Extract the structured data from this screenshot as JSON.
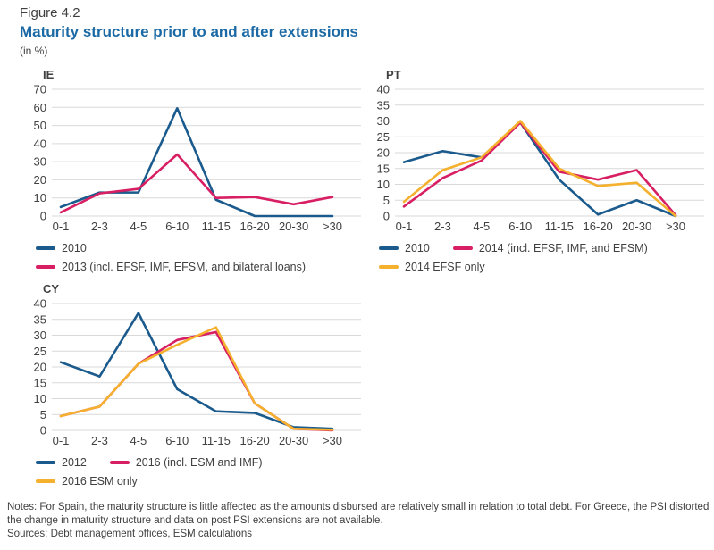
{
  "header": {
    "figure_label": "Figure 4.2",
    "title": "Maturity structure prior to and after extensions",
    "unit": "(in %)"
  },
  "colors": {
    "accent_title": "#1b6aa5",
    "line_blue": "#1a5a8c",
    "line_pink": "#d81f63",
    "line_yellow": "#f5b02e",
    "grid": "#d9d9d9",
    "tick_text": "#404040"
  },
  "chart_data": [
    {
      "type": "line",
      "title": "IE",
      "categories": [
        "0-1",
        "2-3",
        "4-5",
        "6-10",
        "11-15",
        "16-20",
        "20-30",
        ">30"
      ],
      "xlabel": "",
      "ylabel": "",
      "ylim": [
        0,
        70
      ],
      "ytick_step": 10,
      "grid": "horizontal",
      "legend_position": "bottom",
      "series": [
        {
          "name": "2010",
          "color": "#1a5a8c",
          "values": [
            5,
            13,
            13,
            59.5,
            9,
            0,
            0,
            0
          ]
        },
        {
          "name": "2013 (incl. EFSF, IMF, EFSM, and bilateral loans)",
          "color": "#d81f63",
          "values": [
            2,
            12.5,
            15,
            34,
            10,
            10.5,
            6.5,
            10.5
          ]
        }
      ]
    },
    {
      "type": "line",
      "title": "PT",
      "categories": [
        "0-1",
        "2-3",
        "4-5",
        "6-10",
        "11-15",
        "16-20",
        "20-30",
        ">30"
      ],
      "xlabel": "",
      "ylabel": "",
      "ylim": [
        0,
        40
      ],
      "ytick_step": 5,
      "grid": "horizontal",
      "legend_position": "bottom",
      "series": [
        {
          "name": "2010",
          "color": "#1a5a8c",
          "values": [
            17,
            20.5,
            18.5,
            29.5,
            11.5,
            0.5,
            5,
            0
          ]
        },
        {
          "name": "2014 (incl. EFSF, IMF, and EFSM)",
          "color": "#d81f63",
          "values": [
            3,
            12,
            17.5,
            29.5,
            14,
            11.5,
            14.5,
            0.3
          ]
        },
        {
          "name": "2014 EFSF only",
          "color": "#f5b02e",
          "values": [
            4.5,
            14.5,
            18.5,
            30,
            15,
            9.5,
            10.5,
            0
          ]
        }
      ]
    },
    {
      "type": "line",
      "title": "CY",
      "categories": [
        "0-1",
        "2-3",
        "4-5",
        "6-10",
        "11-15",
        "16-20",
        "20-30",
        ">30"
      ],
      "xlabel": "",
      "ylabel": "",
      "ylim": [
        0,
        40
      ],
      "ytick_step": 5,
      "grid": "horizontal",
      "legend_position": "bottom",
      "series": [
        {
          "name": "2012",
          "color": "#1a5a8c",
          "values": [
            21.5,
            17,
            37,
            13,
            6,
            5.5,
            1,
            0.5
          ]
        },
        {
          "name": "2016 (incl. ESM and IMF)",
          "color": "#d81f63",
          "values": [
            4.5,
            7.5,
            21,
            28.5,
            31,
            8.5,
            0.5,
            0
          ]
        },
        {
          "name": "2016 ESM only",
          "color": "#f5b02e",
          "values": [
            4.5,
            7.5,
            21,
            27,
            32.5,
            8.5,
            0.5,
            0.2
          ]
        }
      ]
    }
  ],
  "footer": {
    "notes": "Notes: For Spain, the maturity structure is little affected as the amounts disbursed are relatively small in relation to total debt. For Greece, the PSI distorted the change in maturity structure and data on post PSI extensions are not available.",
    "sources": "Sources: Debt management offices, ESM calculations"
  }
}
